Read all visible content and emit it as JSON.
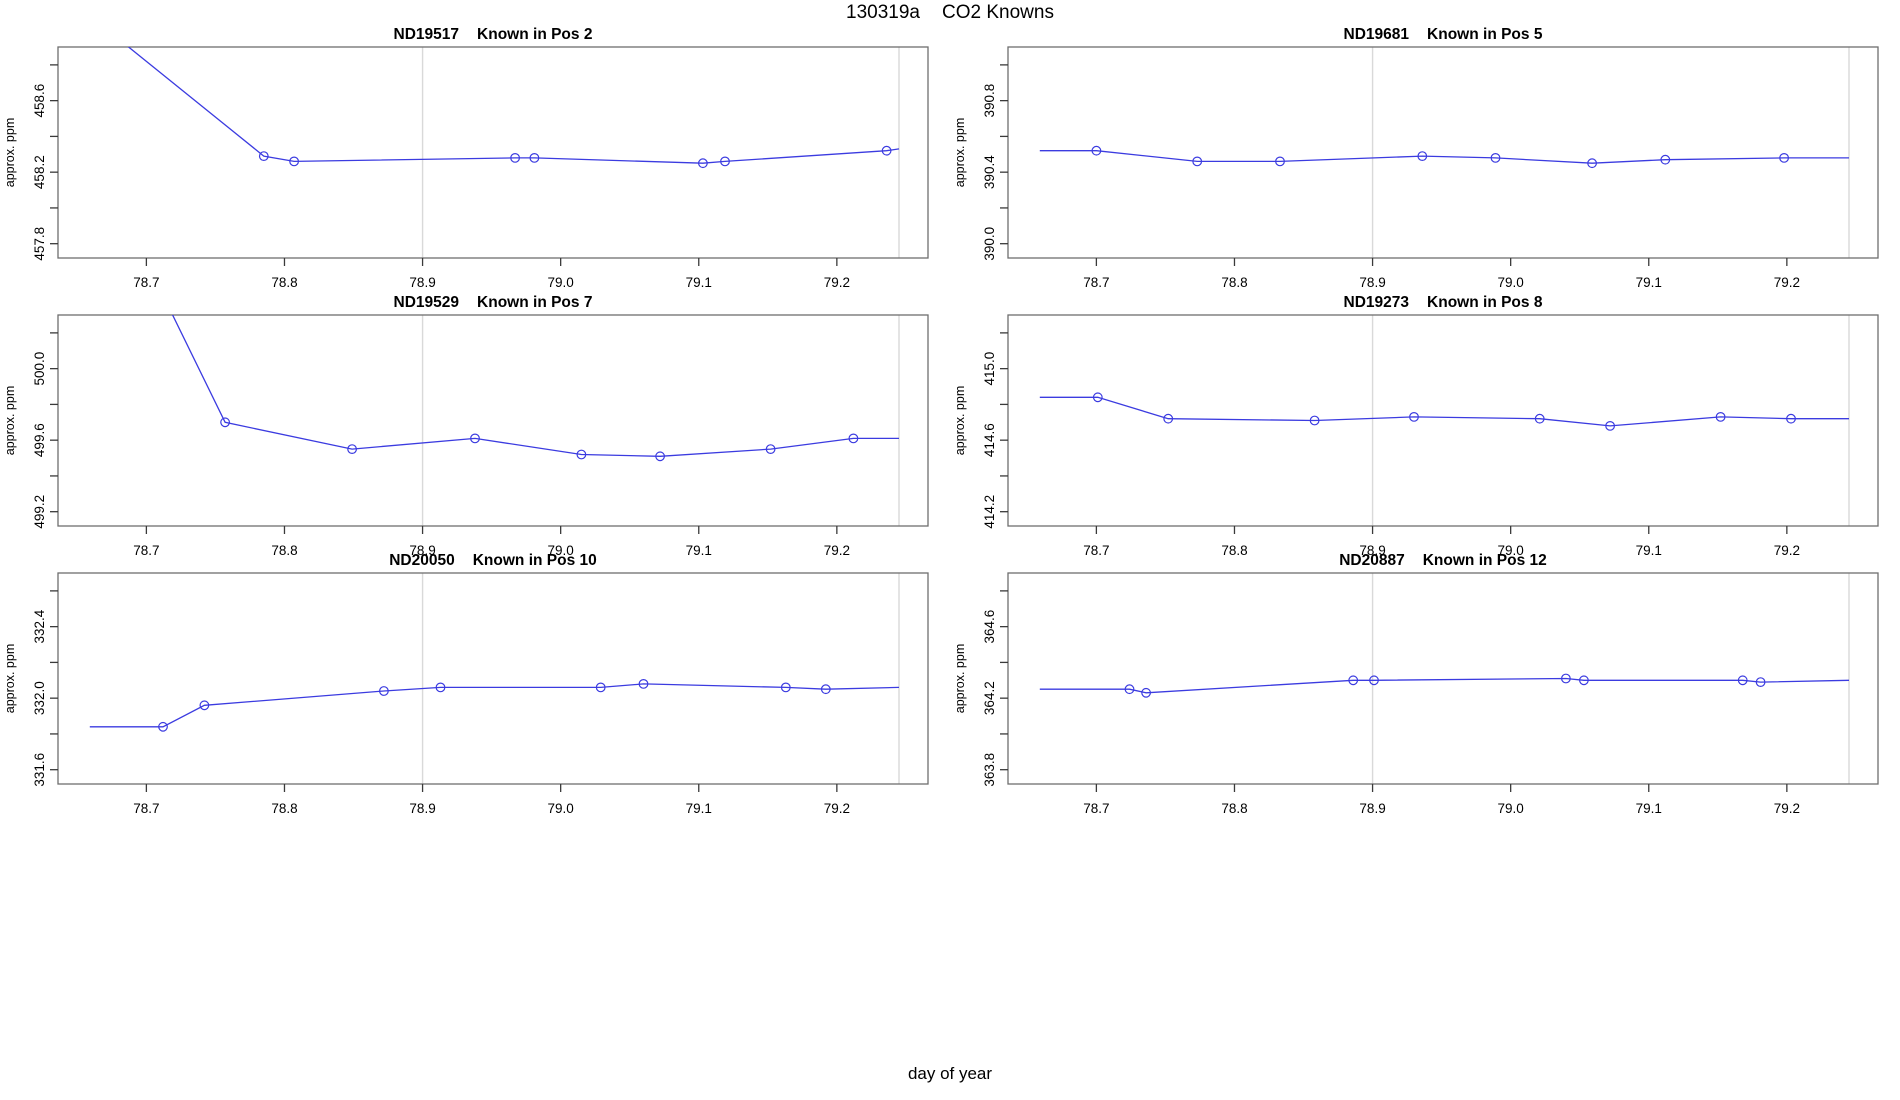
{
  "main": {
    "title_run": "130319a",
    "title_text": "CO2 Knowns"
  },
  "colors": {
    "line": "#3b3be0",
    "marker": "#3b3be0",
    "grid": "#d9d9d9",
    "box": "#6e6e6e",
    "tick": "#3a3a3a",
    "text": "#000000",
    "background": "#ffffff"
  },
  "axes_shared": {
    "xlabel": "day of year",
    "ylabel": "approx. ppm",
    "xlim": [
      78.636,
      79.266
    ],
    "xticks": [
      {
        "v": 78.7,
        "label": "78.7"
      },
      {
        "v": 78.8,
        "label": "78.8"
      },
      {
        "v": 78.9,
        "label": "78.9"
      },
      {
        "v": 79.0,
        "label": "79.0"
      },
      {
        "v": 79.1,
        "label": "79.1"
      },
      {
        "v": 79.2,
        "label": "79.2"
      }
    ],
    "gridlines_x": [
      78.9,
      79.245
    ],
    "grid_on": "vertical reference lines only",
    "legend": "none"
  },
  "chart_data": [
    {
      "type": "line",
      "sample": "ND19517",
      "position": "Known in Pos 2",
      "title": "ND19517    Known in Pos 2",
      "ylabel": "approx. ppm",
      "ylim": [
        457.72,
        458.9
      ],
      "yticks": [
        {
          "v": 457.8,
          "label": "457.8"
        },
        {
          "v": 458.0,
          "label": ""
        },
        {
          "v": 458.2,
          "label": "458.2"
        },
        {
          "v": 458.4,
          "label": ""
        },
        {
          "v": 458.6,
          "label": "458.6"
        },
        {
          "v": 458.8,
          "label": ""
        }
      ],
      "x": [
        78.785,
        78.807,
        78.967,
        78.981,
        79.103,
        79.119,
        79.236
      ],
      "y": [
        458.29,
        458.26,
        458.28,
        458.28,
        458.25,
        458.26,
        458.32
      ],
      "line_start": [
        78.655,
        459.1
      ],
      "line_end": [
        79.245,
        458.33
      ]
    },
    {
      "type": "line",
      "sample": "ND19681",
      "position": "Known in Pos 5",
      "title": "ND19681    Known in Pos 5",
      "ylabel": "approx. ppm",
      "ylim": [
        389.92,
        391.1
      ],
      "yticks": [
        {
          "v": 390.0,
          "label": "390.0"
        },
        {
          "v": 390.2,
          "label": ""
        },
        {
          "v": 390.4,
          "label": "390.4"
        },
        {
          "v": 390.6,
          "label": ""
        },
        {
          "v": 390.8,
          "label": "390.8"
        },
        {
          "v": 391.0,
          "label": ""
        }
      ],
      "x": [
        78.7,
        78.773,
        78.833,
        78.936,
        78.989,
        79.059,
        79.112,
        79.198
      ],
      "y": [
        390.52,
        390.46,
        390.46,
        390.49,
        390.48,
        390.45,
        390.47,
        390.48
      ],
      "line_start": [
        78.659,
        390.52
      ],
      "line_end": [
        79.245,
        390.48
      ]
    },
    {
      "type": "line",
      "sample": "ND19529",
      "position": "Known in Pos 7",
      "title": "ND19529    Known in Pos 7",
      "ylabel": "approx. ppm",
      "ylim": [
        499.12,
        500.3
      ],
      "yticks": [
        {
          "v": 499.2,
          "label": "499.2"
        },
        {
          "v": 499.4,
          "label": ""
        },
        {
          "v": 499.6,
          "label": "499.6"
        },
        {
          "v": 499.8,
          "label": ""
        },
        {
          "v": 500.0,
          "label": "500.0"
        },
        {
          "v": 500.2,
          "label": ""
        }
      ],
      "x": [
        78.757,
        78.849,
        78.938,
        79.015,
        79.072,
        79.152,
        79.212
      ],
      "y": [
        499.7,
        499.55,
        499.61,
        499.52,
        499.51,
        499.55,
        499.61
      ],
      "line_start": [
        78.7,
        500.6
      ],
      "line_end": [
        79.245,
        499.61
      ]
    },
    {
      "type": "line",
      "sample": "ND19273",
      "position": "Known in Pos 8",
      "title": "ND19273    Known in Pos 8",
      "ylabel": "approx. ppm",
      "ylim": [
        414.12,
        415.3
      ],
      "yticks": [
        {
          "v": 414.2,
          "label": "414.2"
        },
        {
          "v": 414.4,
          "label": ""
        },
        {
          "v": 414.6,
          "label": "414.6"
        },
        {
          "v": 414.8,
          "label": ""
        },
        {
          "v": 415.0,
          "label": "415.0"
        },
        {
          "v": 415.2,
          "label": ""
        }
      ],
      "x": [
        78.701,
        78.752,
        78.858,
        78.93,
        79.021,
        79.072,
        79.152,
        79.203
      ],
      "y": [
        414.84,
        414.72,
        414.71,
        414.73,
        414.72,
        414.68,
        414.73,
        414.72
      ],
      "line_start": [
        78.659,
        414.84
      ],
      "line_end": [
        79.245,
        414.72
      ]
    },
    {
      "type": "line",
      "sample": "ND20050",
      "position": "Known in Pos 10",
      "title": "ND20050    Known in Pos 10",
      "ylabel": "approx. ppm",
      "ylim": [
        331.52,
        332.7
      ],
      "yticks": [
        {
          "v": 331.6,
          "label": "331.6"
        },
        {
          "v": 331.8,
          "label": ""
        },
        {
          "v": 332.0,
          "label": "332.0"
        },
        {
          "v": 332.2,
          "label": ""
        },
        {
          "v": 332.4,
          "label": "332.4"
        },
        {
          "v": 332.6,
          "label": ""
        }
      ],
      "x": [
        78.712,
        78.742,
        78.872,
        78.913,
        79.029,
        79.06,
        79.163,
        79.192
      ],
      "y": [
        331.84,
        331.96,
        332.04,
        332.06,
        332.06,
        332.08,
        332.06,
        332.05
      ],
      "line_start": [
        78.659,
        331.84
      ],
      "line_end": [
        79.245,
        332.06
      ]
    },
    {
      "type": "line",
      "sample": "ND20887",
      "position": "Known in Pos 12",
      "title": "ND20887    Known in Pos 12",
      "ylabel": "approx. ppm",
      "ylim": [
        363.72,
        364.9
      ],
      "yticks": [
        {
          "v": 363.8,
          "label": "363.8"
        },
        {
          "v": 364.0,
          "label": ""
        },
        {
          "v": 364.2,
          "label": "364.2"
        },
        {
          "v": 364.4,
          "label": ""
        },
        {
          "v": 364.6,
          "label": "364.6"
        },
        {
          "v": 364.8,
          "label": ""
        }
      ],
      "x": [
        78.724,
        78.736,
        78.886,
        78.901,
        79.04,
        79.053,
        79.168,
        79.181
      ],
      "y": [
        364.25,
        364.23,
        364.3,
        364.3,
        364.31,
        364.3,
        364.3,
        364.29
      ],
      "line_start": [
        78.659,
        364.25
      ],
      "line_end": [
        79.245,
        364.3
      ]
    }
  ]
}
